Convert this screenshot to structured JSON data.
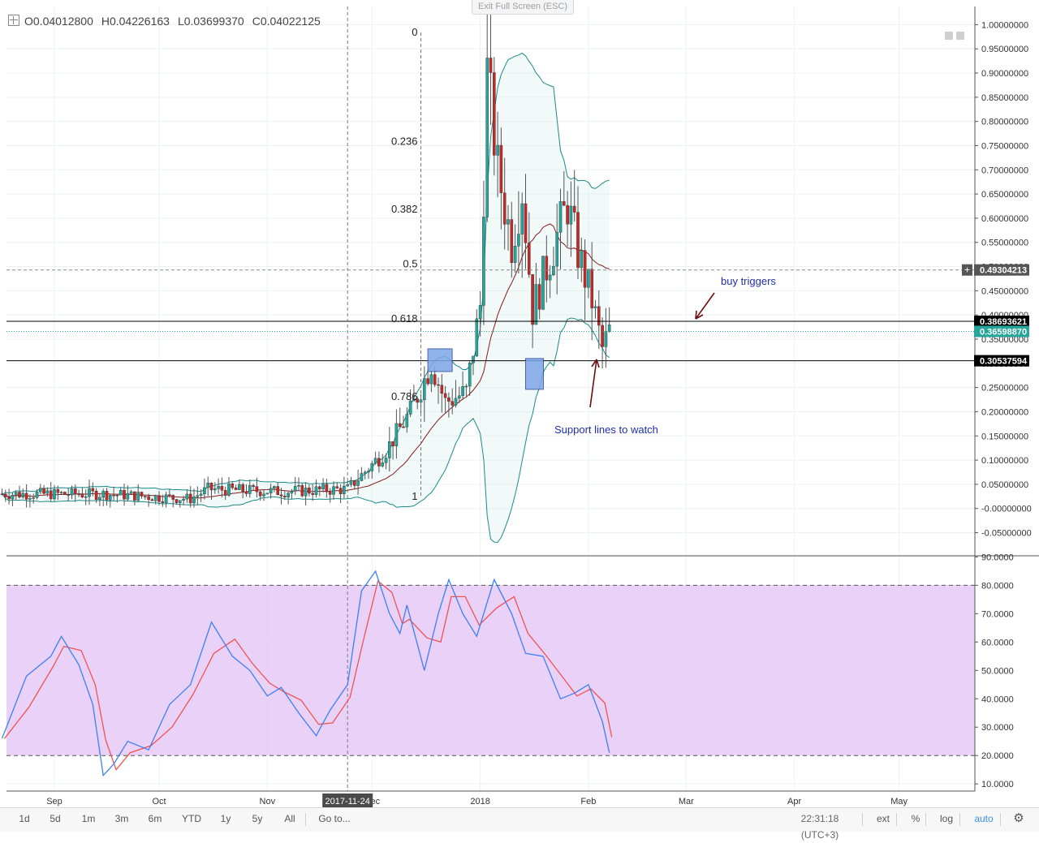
{
  "header": {
    "exit_label": "Exit Full Screen (ESC)",
    "open": "O0.04012800",
    "high": "H0.04226163",
    "low": "L0.03699370",
    "close": "C0.04022125"
  },
  "price_axis": {
    "ticks": [
      "1.00000000",
      "0.95000000",
      "0.90000000",
      "0.85000000",
      "0.80000000",
      "0.75000000",
      "0.70000000",
      "0.65000000",
      "0.60000000",
      "0.55000000",
      "0.50000000",
      "0.45000000",
      "0.40000000",
      "0.35000000",
      "0.30000000",
      "0.25000000",
      "0.20000000",
      "0.15000000",
      "0.10000000",
      "0.05000000",
      "-0.00000000",
      "-0.05000000"
    ],
    "badges": [
      {
        "text": "0.49304213",
        "value": 0.49304213,
        "bg": "#555555"
      },
      {
        "text": "0.38693621",
        "value": 0.38693621,
        "bg": "#000000"
      },
      {
        "text": "0.36598870",
        "value": 0.3659887,
        "bg": "#26a69a"
      },
      {
        "text": "0.30537594",
        "value": 0.30537594,
        "bg": "#000000"
      }
    ]
  },
  "osc_axis": {
    "ticks": [
      "90.0000",
      "80.0000",
      "70.0000",
      "60.0000",
      "50.0000",
      "40.0000",
      "30.0000",
      "20.0000",
      "10.0000"
    ]
  },
  "time_axis": {
    "labels": [
      "Sep",
      "Oct",
      "Nov",
      "Dec",
      "2018",
      "Feb",
      "Mar",
      "Apr",
      "May"
    ],
    "crosshair_label": "2017-11-24"
  },
  "fib_levels": [
    {
      "label": "0",
      "value": 0.984
    },
    {
      "label": "0.236",
      "value": 0.758
    },
    {
      "label": "0.382",
      "value": 0.618
    },
    {
      "label": "0.5",
      "value": 0.505
    },
    {
      "label": "0.618",
      "value": 0.392
    },
    {
      "label": "0.786",
      "value": 0.231
    },
    {
      "label": "1",
      "value": 0.025
    }
  ],
  "annotations": {
    "buy": "buy triggers",
    "support": "Support lines to watch"
  },
  "toolbar": {
    "ranges": [
      "1d",
      "5d",
      "1m",
      "3m",
      "6m",
      "YTD",
      "1y",
      "5y",
      "All",
      "Go to..."
    ],
    "clock": "22:31:18 (UTC+3)",
    "right": [
      "ext",
      "%",
      "log",
      "auto"
    ]
  },
  "colors": {
    "up": "#26a69a",
    "down": "#c62828",
    "band": "#1b8a8a",
    "basis": "#8b1a1a",
    "k_line": "#3d7ff5",
    "d_line": "#ef5350",
    "osc_fill": "#e6c9f7",
    "accent_blue": "#1f2fb0"
  },
  "chart_data": [
    {
      "type": "candlestick",
      "title": "",
      "y_range": [
        -0.07,
        1.03
      ],
      "x_range": [
        "2017-08-17",
        "2018-05-17"
      ],
      "horizontal_lines": [
        0.38693621,
        0.30537594,
        0.49304213
      ],
      "anchors": [
        {
          "date": "2017-08-17",
          "close": 0.03
        },
        {
          "date": "2017-09-15",
          "close": 0.03
        },
        {
          "date": "2017-10-10",
          "close": 0.02
        },
        {
          "date": "2017-10-15",
          "close": 0.04
        },
        {
          "date": "2017-11-05",
          "close": 0.035
        },
        {
          "date": "2017-11-24",
          "close": 0.04
        },
        {
          "date": "2017-12-05",
          "close": 0.12
        },
        {
          "date": "2017-12-12",
          "close": 0.2
        },
        {
          "date": "2017-12-18",
          "close": 0.3
        },
        {
          "date": "2017-12-22",
          "close": 0.22
        },
        {
          "date": "2017-12-28",
          "close": 0.24
        },
        {
          "date": "2018-01-01",
          "close": 0.42
        },
        {
          "date": "2018-01-03",
          "close": 0.9
        },
        {
          "date": "2018-01-06",
          "close": 0.7
        },
        {
          "date": "2018-01-10",
          "close": 0.55
        },
        {
          "date": "2018-01-13",
          "close": 0.66
        },
        {
          "date": "2018-01-16",
          "close": 0.41
        },
        {
          "date": "2018-01-21",
          "close": 0.52
        },
        {
          "date": "2018-01-26",
          "close": 0.63
        },
        {
          "date": "2018-01-29",
          "close": 0.53
        },
        {
          "date": "2018-02-02",
          "close": 0.43
        },
        {
          "date": "2018-02-05",
          "close": 0.33
        },
        {
          "date": "2018-02-07",
          "close": 0.366
        }
      ]
    },
    {
      "type": "line",
      "title": "",
      "y_range": [
        7,
        92
      ],
      "bands": [
        80,
        20
      ],
      "series": [
        {
          "name": "",
          "points": [
            {
              "date": "2017-08-17",
              "value": 26
            },
            {
              "date": "2017-08-24",
              "value": 48
            },
            {
              "date": "2017-08-31",
              "value": 55
            },
            {
              "date": "2017-09-03",
              "value": 62
            },
            {
              "date": "2017-09-08",
              "value": 52
            },
            {
              "date": "2017-09-12",
              "value": 38
            },
            {
              "date": "2017-09-15",
              "value": 13
            },
            {
              "date": "2017-09-18",
              "value": 17
            },
            {
              "date": "2017-09-22",
              "value": 25
            },
            {
              "date": "2017-09-28",
              "value": 22
            },
            {
              "date": "2017-10-04",
              "value": 38
            },
            {
              "date": "2017-10-10",
              "value": 45
            },
            {
              "date": "2017-10-16",
              "value": 67
            },
            {
              "date": "2017-10-22",
              "value": 55
            },
            {
              "date": "2017-10-27",
              "value": 50
            },
            {
              "date": "2017-11-01",
              "value": 41
            },
            {
              "date": "2017-11-05",
              "value": 44
            },
            {
              "date": "2017-11-10",
              "value": 35
            },
            {
              "date": "2017-11-15",
              "value": 27
            },
            {
              "date": "2017-11-19",
              "value": 36
            },
            {
              "date": "2017-11-24",
              "value": 45
            },
            {
              "date": "2017-11-28",
              "value": 78
            },
            {
              "date": "2017-12-02",
              "value": 85
            },
            {
              "date": "2017-12-06",
              "value": 70
            },
            {
              "date": "2017-12-09",
              "value": 63
            },
            {
              "date": "2017-12-11",
              "value": 73
            },
            {
              "date": "2017-12-16",
              "value": 50
            },
            {
              "date": "2017-12-20",
              "value": 70
            },
            {
              "date": "2017-12-23",
              "value": 82
            },
            {
              "date": "2017-12-27",
              "value": 70
            },
            {
              "date": "2017-12-31",
              "value": 62
            },
            {
              "date": "2018-01-05",
              "value": 82
            },
            {
              "date": "2018-01-10",
              "value": 70
            },
            {
              "date": "2018-01-14",
              "value": 56
            },
            {
              "date": "2018-01-19",
              "value": 55
            },
            {
              "date": "2018-01-24",
              "value": 40
            },
            {
              "date": "2018-01-28",
              "value": 42
            },
            {
              "date": "2018-02-01",
              "value": 45
            },
            {
              "date": "2018-02-05",
              "value": 32
            },
            {
              "date": "2018-02-07",
              "value": 21
            }
          ]
        }
      ]
    }
  ]
}
